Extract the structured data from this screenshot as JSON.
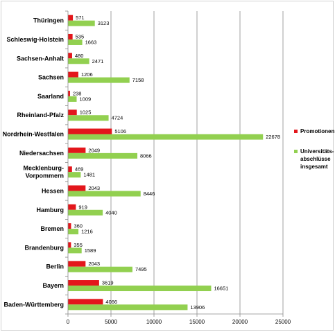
{
  "chart_data": {
    "type": "bar",
    "orientation": "horizontal",
    "categories": [
      "Thüringen",
      "Schleswig-Holstein",
      "Sachsen-Anhalt",
      "Sachsen",
      "Saarland",
      "Rheinland-Pfalz",
      "Nordrhein-Westfalen",
      "Niedersachsen",
      "Mecklenburg-Vorpommern",
      "Hessen",
      "Hamburg",
      "Bremen",
      "Brandenburg",
      "Berlin",
      "Bayern",
      "Baden-Württemberg"
    ],
    "category_lines": [
      [
        "Thüringen"
      ],
      [
        "Schleswig-Holstein"
      ],
      [
        "Sachsen-Anhalt"
      ],
      [
        "Sachsen"
      ],
      [
        "Saarland"
      ],
      [
        "Rheinland-Pfalz"
      ],
      [
        "Nordrhein-Westfalen"
      ],
      [
        "Niedersachsen"
      ],
      [
        "Mecklenburg-",
        "Vorpommern"
      ],
      [
        "Hessen"
      ],
      [
        "Hamburg"
      ],
      [
        "Bremen"
      ],
      [
        "Brandenburg"
      ],
      [
        "Berlin"
      ],
      [
        "Bayern"
      ],
      [
        "Baden-Württemberg"
      ]
    ],
    "series": [
      {
        "name": "Promotionen",
        "color": "#e3161b",
        "values": [
          571,
          535,
          480,
          1206,
          238,
          1025,
          5106,
          2049,
          469,
          2043,
          919,
          360,
          355,
          2043,
          3619,
          4066
        ]
      },
      {
        "name": "Universitäts-abschlüsse insgesamt",
        "name_lines": [
          "Universitäts-",
          "abschlüsse",
          "insgesamt"
        ],
        "color": "#92d050",
        "values": [
          3123,
          1663,
          2471,
          7158,
          1009,
          4724,
          22678,
          8066,
          1481,
          8446,
          4040,
          1216,
          1589,
          7495,
          16651,
          13906
        ]
      }
    ],
    "xlim": [
      0,
      25000
    ],
    "xticks": [
      0,
      5000,
      10000,
      15000,
      20000,
      25000
    ],
    "grid": true,
    "legend": "right"
  }
}
